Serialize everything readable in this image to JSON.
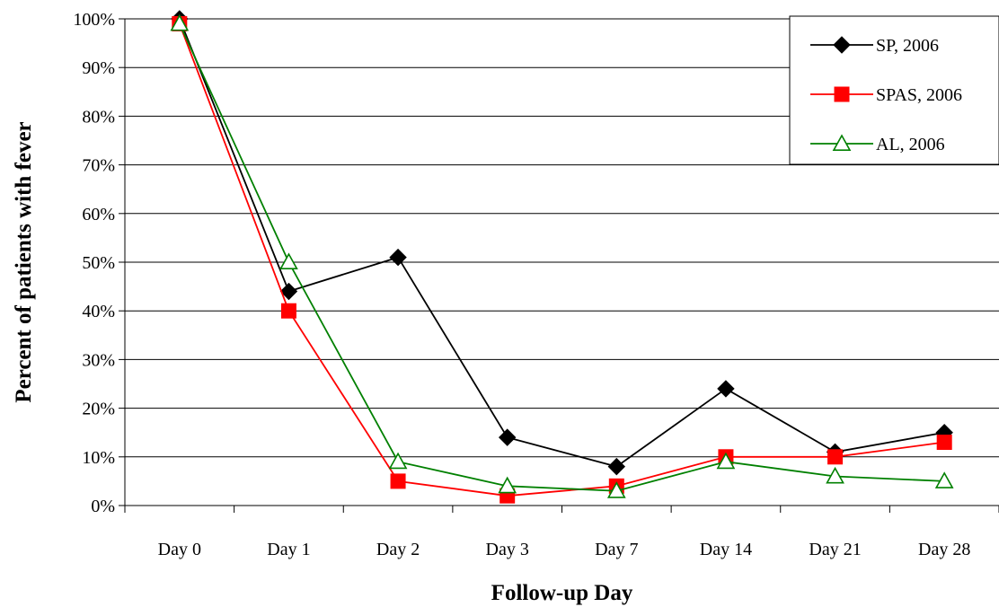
{
  "chart_data": {
    "type": "line",
    "title": "",
    "xlabel": "Follow-up Day",
    "ylabel": "Percent of patients with fever",
    "categories": [
      "Day 0",
      "Day 1",
      "Day 2",
      "Day 3",
      "Day 7",
      "Day 14",
      "Day 21",
      "Day 28"
    ],
    "ylim": [
      0,
      100
    ],
    "yticks": [
      0,
      10,
      20,
      30,
      40,
      50,
      60,
      70,
      80,
      90,
      100
    ],
    "ytick_labels": [
      "0%",
      "10%",
      "20%",
      "30%",
      "40%",
      "50%",
      "60%",
      "70%",
      "80%",
      "90%",
      "100%"
    ],
    "grid": true,
    "legend_position": "top-right",
    "series": [
      {
        "name": "SP, 2006",
        "color": "#000000",
        "marker": "diamond",
        "values": [
          100,
          44,
          51,
          14,
          8,
          24,
          11,
          15
        ]
      },
      {
        "name": "SPAS, 2006",
        "color": "#ff0000",
        "marker": "square",
        "values": [
          99,
          40,
          5,
          2,
          4,
          10,
          10,
          13
        ]
      },
      {
        "name": "AL, 2006",
        "color": "#008000",
        "marker": "triangle-open",
        "values": [
          99,
          50,
          9,
          4,
          3,
          9,
          6,
          5
        ]
      }
    ]
  }
}
